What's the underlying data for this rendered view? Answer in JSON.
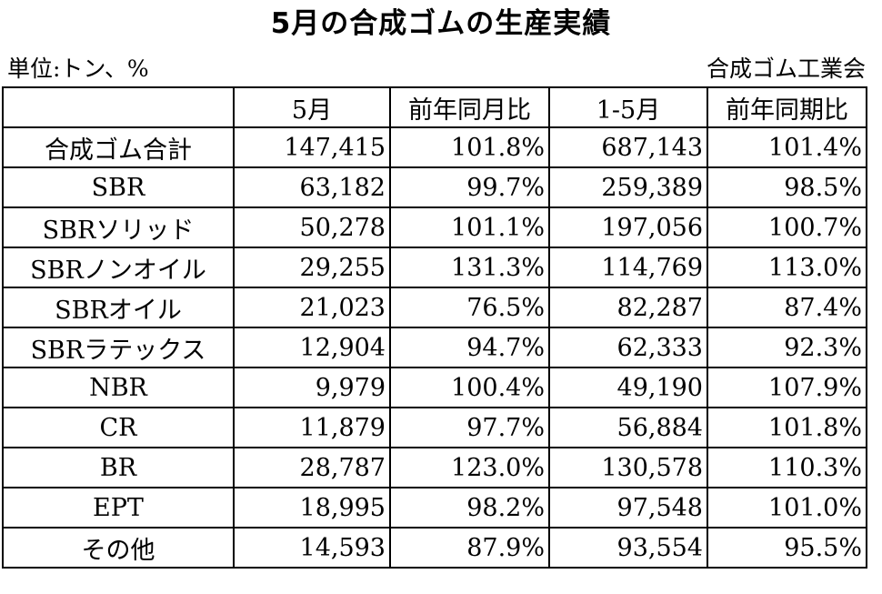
{
  "title": "5月の合成ゴムの生産実績",
  "unit_label": "単位:トン、%",
  "source_label": "合成ゴム工業会",
  "table": {
    "headers": [
      "",
      "5月",
      "前年同月比",
      "1-5月",
      "前年同期比"
    ],
    "rows": [
      {
        "name": "合成ゴム合計",
        "may": "147,415",
        "yoy_month": "101.8%",
        "jan_may": "687,143",
        "yoy_period": "101.4%"
      },
      {
        "name": "SBR",
        "may": "63,182",
        "yoy_month": "99.7%",
        "jan_may": "259,389",
        "yoy_period": "98.5%"
      },
      {
        "name": "SBRソリッド",
        "may": "50,278",
        "yoy_month": "101.1%",
        "jan_may": "197,056",
        "yoy_period": "100.7%"
      },
      {
        "name": "SBRノンオイル",
        "may": "29,255",
        "yoy_month": "131.3%",
        "jan_may": "114,769",
        "yoy_period": "113.0%"
      },
      {
        "name": "SBRオイル",
        "may": "21,023",
        "yoy_month": "76.5%",
        "jan_may": "82,287",
        "yoy_period": "87.4%"
      },
      {
        "name": "SBRラテックス",
        "may": "12,904",
        "yoy_month": "94.7%",
        "jan_may": "62,333",
        "yoy_period": "92.3%"
      },
      {
        "name": "NBR",
        "may": "9,979",
        "yoy_month": "100.4%",
        "jan_may": "49,190",
        "yoy_period": "107.9%"
      },
      {
        "name": "CR",
        "may": "11,879",
        "yoy_month": "97.7%",
        "jan_may": "56,884",
        "yoy_period": "101.8%"
      },
      {
        "name": "BR",
        "may": "28,787",
        "yoy_month": "123.0%",
        "jan_may": "130,578",
        "yoy_period": "110.3%"
      },
      {
        "name": "EPT",
        "may": "18,995",
        "yoy_month": "98.2%",
        "jan_may": "97,548",
        "yoy_period": "101.0%"
      },
      {
        "name": "その他",
        "may": "14,593",
        "yoy_month": "87.9%",
        "jan_may": "93,554",
        "yoy_period": "95.5%"
      }
    ]
  }
}
